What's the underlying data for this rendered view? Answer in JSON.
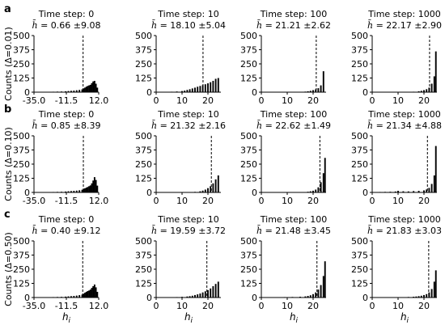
{
  "figure": {
    "shared_ylabel_symbol": "Counts",
    "shared_xlabel": "h",
    "shared_xlabel_sub": "i",
    "hbar_symbol": "h̄"
  },
  "chart_data": [
    {
      "type": "bar",
      "panel": "a-0",
      "row_label": "a",
      "ylabel": "Counts (Δ=0.01)",
      "title": "Time step: 0",
      "stat_mean": "0.66",
      "stat_sd": "±9.08",
      "xlim": [
        -35,
        12
      ],
      "ylim": [
        0,
        500
      ],
      "xticks": [
        "-35.0",
        "-11.5",
        "12.0"
      ],
      "yticks": [
        "0",
        "125",
        "250",
        "375",
        "500"
      ],
      "xtick_values": [
        -35,
        -11.5,
        12
      ],
      "ytick_values": [
        0,
        125,
        250,
        375,
        500
      ],
      "mean_line": 0.66,
      "bins": [
        [
          -31,
          1
        ],
        [
          -27,
          2
        ],
        [
          -24,
          3
        ],
        [
          -21,
          4
        ],
        [
          -18,
          5
        ],
        [
          -15,
          6
        ],
        [
          -12,
          8
        ],
        [
          -10,
          10
        ],
        [
          -8,
          12
        ],
        [
          -6,
          14
        ],
        [
          -4,
          17
        ],
        [
          -2,
          20
        ],
        [
          0,
          25
        ],
        [
          1,
          32
        ],
        [
          2,
          40
        ],
        [
          3,
          48
        ],
        [
          4,
          55
        ],
        [
          5,
          60
        ],
        [
          6,
          65
        ],
        [
          7,
          80
        ],
        [
          8,
          95
        ],
        [
          9,
          100
        ],
        [
          10,
          75
        ],
        [
          11,
          40
        ]
      ]
    },
    {
      "type": "bar",
      "panel": "a-10",
      "row_label": "",
      "title": "Time step: 10",
      "stat_mean": "18.10",
      "stat_sd": "±5.04",
      "xlim": [
        0,
        25
      ],
      "ylim": [
        0,
        500
      ],
      "xticks": [
        "0",
        "10",
        "20"
      ],
      "yticks": [
        "0",
        "125",
        "250",
        "375",
        "500"
      ],
      "xtick_values": [
        0,
        10,
        20
      ],
      "ytick_values": [
        0,
        125,
        250,
        375,
        500
      ],
      "mean_line": 18.1,
      "bins": [
        [
          2,
          2
        ],
        [
          4,
          3
        ],
        [
          6,
          4
        ],
        [
          8,
          6
        ],
        [
          10,
          10
        ],
        [
          11,
          14
        ],
        [
          12,
          20
        ],
        [
          13,
          26
        ],
        [
          14,
          33
        ],
        [
          15,
          40
        ],
        [
          16,
          48
        ],
        [
          17,
          55
        ],
        [
          18,
          62
        ],
        [
          19,
          70
        ],
        [
          20,
          78
        ],
        [
          21,
          88
        ],
        [
          22,
          100
        ],
        [
          23,
          118
        ],
        [
          24,
          125
        ]
      ]
    },
    {
      "type": "bar",
      "panel": "a-100",
      "row_label": "",
      "title": "Time step: 100",
      "stat_mean": "21.21",
      "stat_sd": "±2.62",
      "xlim": [
        0,
        25
      ],
      "ylim": [
        0,
        500
      ],
      "xticks": [
        "0",
        "10",
        "20"
      ],
      "yticks": [
        "0",
        "125",
        "250",
        "375",
        "500"
      ],
      "xtick_values": [
        0,
        10,
        20
      ],
      "ytick_values": [
        0,
        125,
        250,
        375,
        500
      ],
      "mean_line": 21.21,
      "bins": [
        [
          17,
          5
        ],
        [
          18,
          8
        ],
        [
          19,
          12
        ],
        [
          20,
          18
        ],
        [
          21,
          25
        ],
        [
          22,
          35
        ],
        [
          23,
          60
        ],
        [
          24,
          185
        ]
      ]
    },
    {
      "type": "bar",
      "panel": "a-1000",
      "row_label": "",
      "title": "Time step: 1000",
      "stat_mean": "22.17",
      "stat_sd": "±2.90",
      "xlim": [
        0,
        25
      ],
      "ylim": [
        0,
        500
      ],
      "xticks": [
        "0",
        "10",
        "20"
      ],
      "yticks": [
        "0",
        "125",
        "250",
        "375",
        "500"
      ],
      "xtick_values": [
        0,
        10,
        20
      ],
      "ytick_values": [
        0,
        125,
        250,
        375,
        500
      ],
      "mean_line": 22.17,
      "bins": [
        [
          16,
          4
        ],
        [
          18,
          8
        ],
        [
          19,
          12
        ],
        [
          20,
          18
        ],
        [
          21,
          26
        ],
        [
          22,
          40
        ],
        [
          23,
          75
        ],
        [
          24,
          140
        ],
        [
          24.6,
          360
        ]
      ]
    },
    {
      "type": "bar",
      "panel": "b-0",
      "row_label": "b",
      "ylabel": "Counts (Δ=0.10)",
      "title": "Time step: 0",
      "stat_mean": "0.85",
      "stat_sd": "±8.39",
      "xlim": [
        -35,
        12
      ],
      "ylim": [
        0,
        500
      ],
      "xticks": [
        "-35.0",
        "-11.5",
        "12.0"
      ],
      "yticks": [
        "0",
        "125",
        "250",
        "375",
        "500"
      ],
      "xtick_values": [
        -35,
        -11.5,
        12
      ],
      "ytick_values": [
        0,
        125,
        250,
        375,
        500
      ],
      "mean_line": 0.85,
      "bins": [
        [
          -31,
          1
        ],
        [
          -27,
          2
        ],
        [
          -24,
          3
        ],
        [
          -21,
          4
        ],
        [
          -18,
          5
        ],
        [
          -15,
          6
        ],
        [
          -12,
          8
        ],
        [
          -10,
          10
        ],
        [
          -8,
          12
        ],
        [
          -6,
          14
        ],
        [
          -4,
          16
        ],
        [
          -2,
          19
        ],
        [
          0,
          24
        ],
        [
          1,
          30
        ],
        [
          2,
          36
        ],
        [
          3,
          42
        ],
        [
          4,
          48
        ],
        [
          5,
          55
        ],
        [
          6,
          62
        ],
        [
          7,
          80
        ],
        [
          8,
          105
        ],
        [
          9,
          135
        ],
        [
          10,
          110
        ],
        [
          11,
          60
        ]
      ]
    },
    {
      "type": "bar",
      "panel": "b-10",
      "row_label": "",
      "title": "Time step: 10",
      "stat_mean": "21.32",
      "stat_sd": "±2.16",
      "xlim": [
        0,
        25
      ],
      "ylim": [
        0,
        500
      ],
      "xticks": [
        "0",
        "10",
        "20"
      ],
      "yticks": [
        "0",
        "125",
        "250",
        "375",
        "500"
      ],
      "xtick_values": [
        0,
        10,
        20
      ],
      "ytick_values": [
        0,
        125,
        250,
        375,
        500
      ],
      "mean_line": 21.32,
      "bins": [
        [
          15,
          5
        ],
        [
          17,
          10
        ],
        [
          18,
          16
        ],
        [
          19,
          25
        ],
        [
          20,
          38
        ],
        [
          21,
          55
        ],
        [
          22,
          80
        ],
        [
          23,
          115
        ],
        [
          24,
          150
        ]
      ]
    },
    {
      "type": "bar",
      "panel": "b-100",
      "row_label": "",
      "title": "Time step: 100",
      "stat_mean": "22.62",
      "stat_sd": "±1.49",
      "xlim": [
        0,
        25
      ],
      "ylim": [
        0,
        500
      ],
      "xticks": [
        "0",
        "10",
        "20"
      ],
      "yticks": [
        "0",
        "125",
        "250",
        "375",
        "500"
      ],
      "xtick_values": [
        0,
        10,
        20
      ],
      "ytick_values": [
        0,
        125,
        250,
        375,
        500
      ],
      "mean_line": 22.62,
      "bins": [
        [
          18,
          6
        ],
        [
          19,
          10
        ],
        [
          20,
          15
        ],
        [
          21,
          25
        ],
        [
          22,
          45
        ],
        [
          23,
          90
        ],
        [
          24,
          170
        ],
        [
          24.6,
          305
        ]
      ]
    },
    {
      "type": "bar",
      "panel": "b-1000",
      "row_label": "",
      "title": "Time step: 1000",
      "stat_mean": "21.34",
      "stat_sd": "±4.88",
      "xlim": [
        0,
        25
      ],
      "ylim": [
        0,
        500
      ],
      "xticks": [
        "0",
        "10",
        "20"
      ],
      "yticks": [
        "0",
        "125",
        "250",
        "375",
        "500"
      ],
      "xtick_values": [
        0,
        10,
        20
      ],
      "ytick_values": [
        0,
        125,
        250,
        375,
        500
      ],
      "mean_line": 21.34,
      "bins": [
        [
          1,
          3
        ],
        [
          3,
          4
        ],
        [
          5,
          5
        ],
        [
          7,
          6
        ],
        [
          9,
          8
        ],
        [
          10,
          14
        ],
        [
          12,
          10
        ],
        [
          14,
          9
        ],
        [
          16,
          12
        ],
        [
          18,
          14
        ],
        [
          20,
          18
        ],
        [
          21,
          26
        ],
        [
          22,
          40
        ],
        [
          23,
          75
        ],
        [
          24,
          150
        ],
        [
          24.6,
          410
        ]
      ]
    },
    {
      "type": "bar",
      "panel": "c-0",
      "row_label": "c",
      "ylabel": "Counts (Δ=0.50)",
      "title": "Time step: 0",
      "stat_mean": "0.40",
      "stat_sd": "±9.12",
      "xlim": [
        -35,
        12
      ],
      "ylim": [
        0,
        500
      ],
      "xticks": [
        "-35.0",
        "-11.5",
        "12.0"
      ],
      "yticks": [
        "0",
        "125",
        "250",
        "375",
        "500"
      ],
      "xtick_values": [
        -35,
        -11.5,
        12
      ],
      "ytick_values": [
        0,
        125,
        250,
        375,
        500
      ],
      "mean_line": 0.4,
      "bins": [
        [
          -31,
          1
        ],
        [
          -27,
          2
        ],
        [
          -24,
          3
        ],
        [
          -21,
          4
        ],
        [
          -18,
          5
        ],
        [
          -15,
          6
        ],
        [
          -12,
          8
        ],
        [
          -10,
          10
        ],
        [
          -8,
          12
        ],
        [
          -6,
          14
        ],
        [
          -4,
          17
        ],
        [
          -2,
          21
        ],
        [
          0,
          26
        ],
        [
          1,
          33
        ],
        [
          2,
          42
        ],
        [
          3,
          50
        ],
        [
          4,
          57
        ],
        [
          5,
          62
        ],
        [
          6,
          70
        ],
        [
          7,
          85
        ],
        [
          8,
          100
        ],
        [
          9,
          115
        ],
        [
          10,
          90
        ],
        [
          11,
          50
        ]
      ]
    },
    {
      "type": "bar",
      "panel": "c-10",
      "row_label": "",
      "title": "Time step: 10",
      "stat_mean": "19.59",
      "stat_sd": "±3.72",
      "xlim": [
        0,
        25
      ],
      "ylim": [
        0,
        500
      ],
      "xticks": [
        "0",
        "10",
        "20"
      ],
      "yticks": [
        "0",
        "125",
        "250",
        "375",
        "500"
      ],
      "xtick_values": [
        0,
        10,
        20
      ],
      "ytick_values": [
        0,
        125,
        250,
        375,
        500
      ],
      "mean_line": 19.59,
      "bins": [
        [
          5,
          3
        ],
        [
          8,
          4
        ],
        [
          10,
          6
        ],
        [
          12,
          9
        ],
        [
          13,
          12
        ],
        [
          14,
          16
        ],
        [
          15,
          22
        ],
        [
          16,
          28
        ],
        [
          17,
          35
        ],
        [
          18,
          45
        ],
        [
          19,
          55
        ],
        [
          20,
          65
        ],
        [
          21,
          80
        ],
        [
          22,
          100
        ],
        [
          23,
          120
        ],
        [
          24,
          140
        ]
      ]
    },
    {
      "type": "bar",
      "panel": "c-100",
      "row_label": "",
      "title": "Time step: 100",
      "stat_mean": "21.48",
      "stat_sd": "±3.45",
      "xlim": [
        0,
        25
      ],
      "ylim": [
        0,
        500
      ],
      "xticks": [
        "0",
        "10",
        "20"
      ],
      "yticks": [
        "0",
        "125",
        "250",
        "375",
        "500"
      ],
      "xtick_values": [
        0,
        10,
        20
      ],
      "ytick_values": [
        0,
        125,
        250,
        375,
        500
      ],
      "mean_line": 21.48,
      "bins": [
        [
          6,
          3
        ],
        [
          9,
          4
        ],
        [
          12,
          5
        ],
        [
          15,
          7
        ],
        [
          17,
          10
        ],
        [
          18,
          14
        ],
        [
          19,
          20
        ],
        [
          20,
          30
        ],
        [
          21,
          45
        ],
        [
          22,
          70
        ],
        [
          23,
          110
        ],
        [
          24,
          190
        ],
        [
          24.6,
          320
        ]
      ]
    },
    {
      "type": "bar",
      "panel": "c-1000",
      "row_label": "",
      "title": "Time step: 1000",
      "stat_mean": "21.83",
      "stat_sd": "±3.03",
      "xlim": [
        0,
        25
      ],
      "ylim": [
        0,
        500
      ],
      "xticks": [
        "0",
        "10",
        "20"
      ],
      "yticks": [
        "0",
        "125",
        "250",
        "375",
        "500"
      ],
      "xtick_values": [
        0,
        10,
        20
      ],
      "ytick_values": [
        0,
        125,
        250,
        375,
        500
      ],
      "mean_line": 21.83,
      "bins": [
        [
          10,
          3
        ],
        [
          14,
          5
        ],
        [
          16,
          7
        ],
        [
          17,
          9
        ],
        [
          18,
          12
        ],
        [
          19,
          16
        ],
        [
          20,
          22
        ],
        [
          21,
          30
        ],
        [
          22,
          45
        ],
        [
          23,
          75
        ],
        [
          24,
          140
        ],
        [
          24.6,
          240
        ]
      ]
    }
  ]
}
